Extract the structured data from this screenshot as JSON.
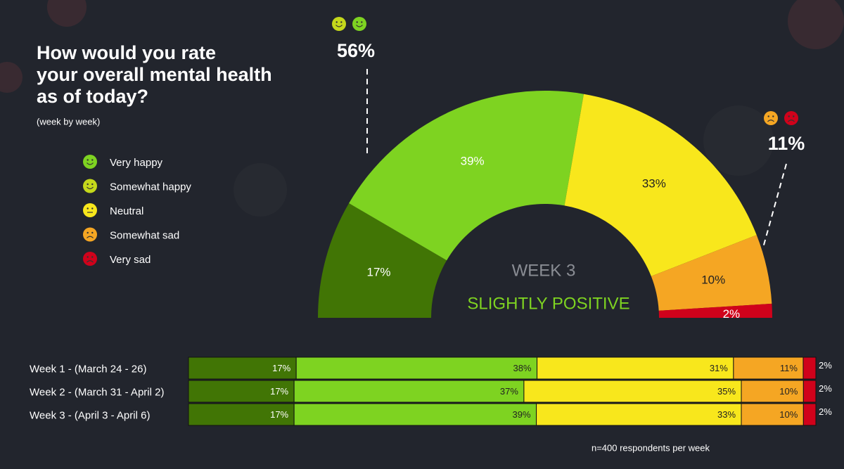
{
  "chart_data": [
    {
      "type": "semi-donut",
      "title": "How would you rate your overall mental health as of today?",
      "subtitle": "(week by week)",
      "center_label": "WEEK 3",
      "center_sublabel": "SLIGHTLY POSITIVE",
      "categories": [
        "Very happy",
        "Somewhat happy",
        "Neutral",
        "Somewhat sad",
        "Very sad"
      ],
      "values": [
        17,
        39,
        33,
        10,
        2
      ],
      "value_labels": [
        "17%",
        "39%",
        "33%",
        "10%",
        "2%"
      ],
      "colors": [
        "#417505",
        "#7ed321",
        "#f8e71c",
        "#f5a623",
        "#d0021b"
      ],
      "annotations": [
        {
          "value": 56,
          "label": "56%"
        },
        {
          "value": 11,
          "label": "11%"
        }
      ]
    },
    {
      "type": "stacked-bar-horizontal",
      "categories": [
        "Week 1 - (March 24 - 26)",
        "Week 2 - (March 31 - April 2)",
        "Week 3 - (April 3 - April 6)"
      ],
      "series": [
        {
          "name": "Very happy",
          "color": "#417505",
          "values": [
            17,
            17,
            17
          ],
          "value_labels": [
            "17%",
            "17%",
            "17%"
          ]
        },
        {
          "name": "Somewhat happy",
          "color": "#7ed321",
          "values": [
            38,
            37,
            39
          ],
          "value_labels": [
            "38%",
            "37%",
            "39%"
          ]
        },
        {
          "name": "Neutral",
          "color": "#f8e71c",
          "values": [
            31,
            35,
            33
          ],
          "value_labels": [
            "31%",
            "35%",
            "33%"
          ]
        },
        {
          "name": "Somewhat sad",
          "color": "#f5a623",
          "values": [
            11,
            10,
            10
          ],
          "value_labels": [
            "11%",
            "10%",
            "10%"
          ]
        },
        {
          "name": "Very sad",
          "color": "#d0021b",
          "values": [
            2,
            2,
            2
          ],
          "value_labels": [
            "2%",
            "2%",
            "2%"
          ]
        }
      ],
      "note": "n=400 respondents per week"
    }
  ]
}
